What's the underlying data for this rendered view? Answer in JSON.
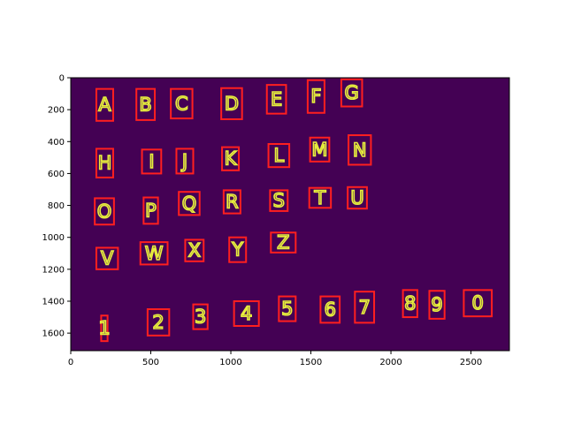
{
  "chart_data": {
    "type": "image",
    "title": "",
    "xlabel": "",
    "ylabel": "",
    "xlim": [
      0,
      2740
    ],
    "ylim": [
      1710,
      0
    ],
    "x_ticks": [
      "0",
      "500",
      "1000",
      "1500",
      "2000",
      "2500"
    ],
    "y_ticks": [
      "0",
      "200",
      "400",
      "600",
      "800",
      "1000",
      "1200",
      "1400",
      "1600"
    ],
    "colors": {
      "background": "#440154",
      "glyph": "#e8f03c",
      "box": "#ff1f1f",
      "axis": "#000000"
    },
    "detections": [
      {
        "label": "A",
        "x0": 160,
        "y0": 70,
        "x1": 265,
        "y1": 270
      },
      {
        "label": "B",
        "x0": 410,
        "y0": 70,
        "x1": 525,
        "y1": 265
      },
      {
        "label": "C",
        "x0": 625,
        "y0": 70,
        "x1": 760,
        "y1": 255
      },
      {
        "label": "D",
        "x0": 940,
        "y0": 65,
        "x1": 1070,
        "y1": 260
      },
      {
        "label": "E",
        "x0": 1225,
        "y0": 45,
        "x1": 1345,
        "y1": 225
      },
      {
        "label": "F",
        "x0": 1480,
        "y0": 15,
        "x1": 1585,
        "y1": 220
      },
      {
        "label": "G",
        "x0": 1690,
        "y0": 10,
        "x1": 1820,
        "y1": 180
      },
      {
        "label": "H",
        "x0": 160,
        "y0": 445,
        "x1": 265,
        "y1": 625
      },
      {
        "label": "I",
        "x0": 445,
        "y0": 450,
        "x1": 565,
        "y1": 600
      },
      {
        "label": "J",
        "x0": 660,
        "y0": 445,
        "x1": 765,
        "y1": 600
      },
      {
        "label": "K",
        "x0": 945,
        "y0": 435,
        "x1": 1050,
        "y1": 580
      },
      {
        "label": "L",
        "x0": 1235,
        "y0": 415,
        "x1": 1365,
        "y1": 560
      },
      {
        "label": "M",
        "x0": 1495,
        "y0": 375,
        "x1": 1615,
        "y1": 525
      },
      {
        "label": "N",
        "x0": 1735,
        "y0": 360,
        "x1": 1875,
        "y1": 545
      },
      {
        "label": "O",
        "x0": 150,
        "y0": 755,
        "x1": 270,
        "y1": 920
      },
      {
        "label": "P",
        "x0": 455,
        "y0": 750,
        "x1": 545,
        "y1": 915
      },
      {
        "label": "Q",
        "x0": 675,
        "y0": 715,
        "x1": 805,
        "y1": 860
      },
      {
        "label": "R",
        "x0": 955,
        "y0": 705,
        "x1": 1060,
        "y1": 850
      },
      {
        "label": "S",
        "x0": 1245,
        "y0": 705,
        "x1": 1355,
        "y1": 835
      },
      {
        "label": "T",
        "x0": 1490,
        "y0": 690,
        "x1": 1625,
        "y1": 815
      },
      {
        "label": "U",
        "x0": 1730,
        "y0": 685,
        "x1": 1850,
        "y1": 820
      },
      {
        "label": "V",
        "x0": 160,
        "y0": 1065,
        "x1": 295,
        "y1": 1200
      },
      {
        "label": "W",
        "x0": 435,
        "y0": 1030,
        "x1": 605,
        "y1": 1170
      },
      {
        "label": "X",
        "x0": 715,
        "y0": 1015,
        "x1": 830,
        "y1": 1150
      },
      {
        "label": "Y",
        "x0": 990,
        "y0": 1000,
        "x1": 1095,
        "y1": 1155
      },
      {
        "label": "Z",
        "x0": 1250,
        "y0": 970,
        "x1": 1405,
        "y1": 1095
      },
      {
        "label": "1",
        "x0": 190,
        "y0": 1490,
        "x1": 230,
        "y1": 1650
      },
      {
        "label": "2",
        "x0": 480,
        "y0": 1450,
        "x1": 615,
        "y1": 1615
      },
      {
        "label": "3",
        "x0": 765,
        "y0": 1420,
        "x1": 855,
        "y1": 1575
      },
      {
        "label": "4",
        "x0": 1020,
        "y0": 1400,
        "x1": 1175,
        "y1": 1555
      },
      {
        "label": "5",
        "x0": 1300,
        "y0": 1370,
        "x1": 1405,
        "y1": 1525
      },
      {
        "label": "6",
        "x0": 1560,
        "y0": 1370,
        "x1": 1680,
        "y1": 1535
      },
      {
        "label": "7",
        "x0": 1775,
        "y0": 1340,
        "x1": 1895,
        "y1": 1535
      },
      {
        "label": "8",
        "x0": 2075,
        "y0": 1330,
        "x1": 2165,
        "y1": 1500
      },
      {
        "label": "9",
        "x0": 2240,
        "y0": 1335,
        "x1": 2335,
        "y1": 1510
      },
      {
        "label": "0",
        "x0": 2455,
        "y0": 1330,
        "x1": 2630,
        "y1": 1495
      }
    ]
  }
}
